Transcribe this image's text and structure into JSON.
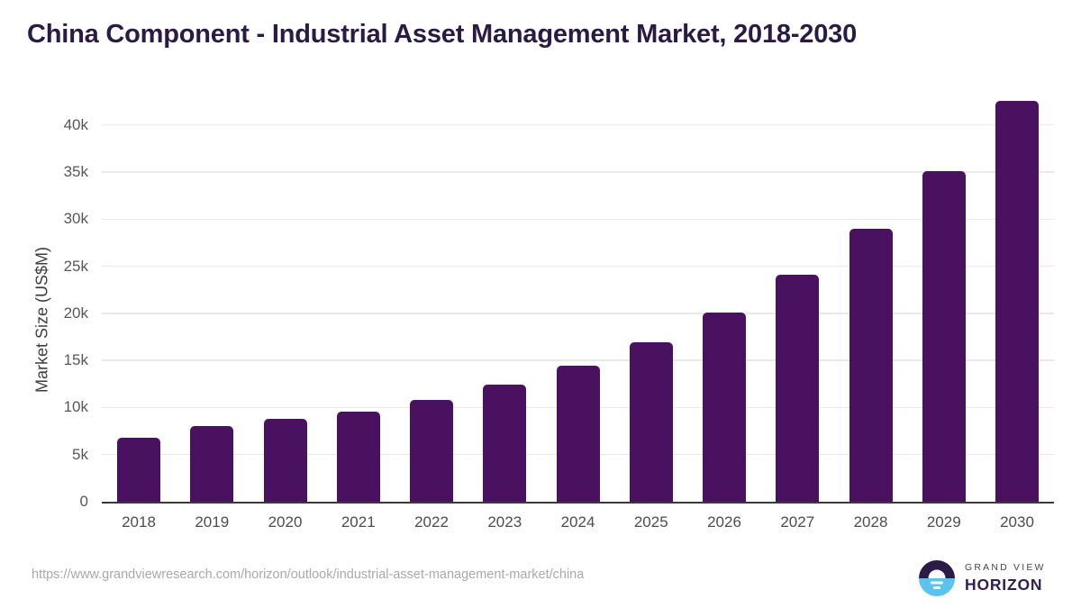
{
  "title": "China Component - Industrial Asset Management Market, 2018-2030",
  "chart_data": {
    "type": "bar",
    "title": "China Component - Industrial Asset Management Market, 2018-2030",
    "categories": [
      "2018",
      "2019",
      "2020",
      "2021",
      "2022",
      "2023",
      "2024",
      "2025",
      "2026",
      "2027",
      "2028",
      "2029",
      "2030"
    ],
    "values": [
      6800,
      8000,
      8800,
      9600,
      10800,
      12400,
      14400,
      16900,
      20100,
      24100,
      29000,
      35100,
      42600
    ],
    "xlabel": "",
    "ylabel": "Market Size (US$M)",
    "ylim": [
      0,
      43700
    ],
    "yticks": [
      0,
      5000,
      10000,
      15000,
      20000,
      25000,
      30000,
      35000,
      40000
    ],
    "ytick_labels": [
      "0",
      "5k",
      "10k",
      "15k",
      "20k",
      "25k",
      "30k",
      "35k",
      "40k"
    ],
    "grid": true,
    "legend": false,
    "bar_color": "#4a1161"
  },
  "footer": {
    "source_url": "https://www.grandviewresearch.com/horizon/outlook/industrial-asset-management-market/china",
    "logo": {
      "line1": "GRAND VIEW",
      "line2": "HORIZON"
    }
  },
  "colors": {
    "bar": "#4a1161",
    "title": "#2b1a43",
    "grid": "#e9e9e9",
    "axis": "#3a3a3a",
    "tick_label": "#58585a",
    "url": "#a9a9a9",
    "logo_dark": "#2d1b47",
    "logo_blue": "#5cc3f0"
  }
}
